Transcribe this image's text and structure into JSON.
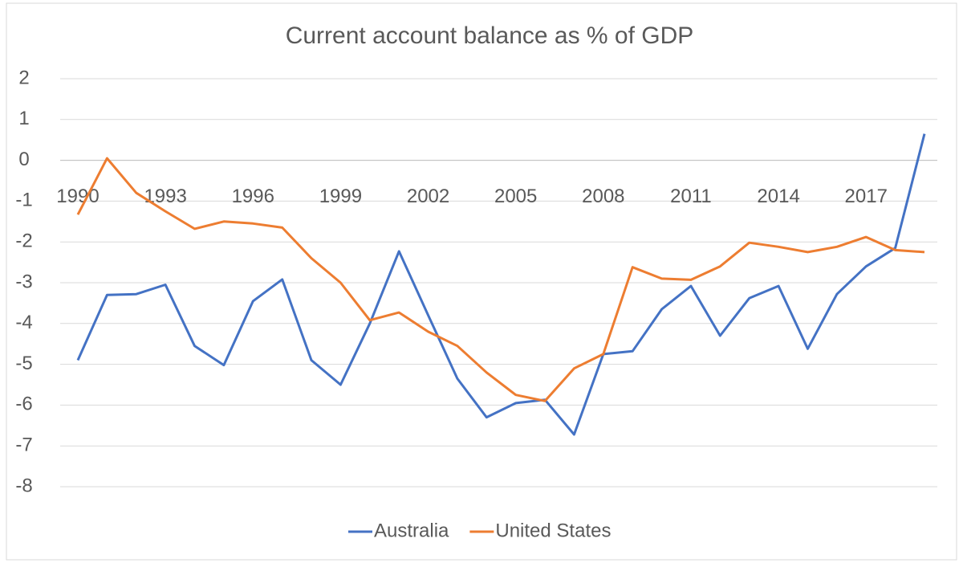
{
  "chart_data": {
    "type": "line",
    "title": "Current account balance as % of GDP",
    "categories": [
      "1990",
      null,
      null,
      "1993",
      null,
      null,
      "1996",
      null,
      null,
      "1999",
      null,
      null,
      "2002",
      null,
      null,
      "2005",
      null,
      null,
      "2008",
      null,
      null,
      "2011",
      null,
      null,
      "2014",
      null,
      null,
      "2017",
      null,
      null
    ],
    "series": [
      {
        "name": "Australia",
        "color": "#4472c4",
        "values": [
          -4.9,
          -3.3,
          -3.28,
          -3.05,
          -4.55,
          -5.02,
          -3.45,
          -2.92,
          -4.9,
          -5.5,
          -4.0,
          -2.23,
          -3.8,
          -5.35,
          -6.3,
          -5.95,
          -5.87,
          -6.72,
          -4.75,
          -4.68,
          -3.65,
          -3.08,
          -4.3,
          -3.38,
          -3.08,
          -4.62,
          -3.28,
          -2.6,
          -2.15,
          0.65
        ]
      },
      {
        "name": "United States",
        "color": "#ed7d31",
        "values": [
          -1.33,
          0.05,
          -0.8,
          -1.25,
          -1.68,
          -1.5,
          -1.55,
          -1.65,
          -2.4,
          -3.0,
          -3.92,
          -3.73,
          -4.2,
          -4.55,
          -5.2,
          -5.75,
          -5.9,
          -5.1,
          -4.75,
          -2.62,
          -2.9,
          -2.93,
          -2.6,
          -2.02,
          -2.12,
          -2.25,
          -2.12,
          -1.88,
          -2.2,
          -2.25
        ]
      }
    ],
    "ylim": [
      -8,
      2
    ],
    "yticks": [
      -8,
      -7,
      -6,
      -5,
      -4,
      -3,
      -2,
      -1,
      0,
      1,
      2
    ],
    "grid": true,
    "legend": "bottom"
  }
}
